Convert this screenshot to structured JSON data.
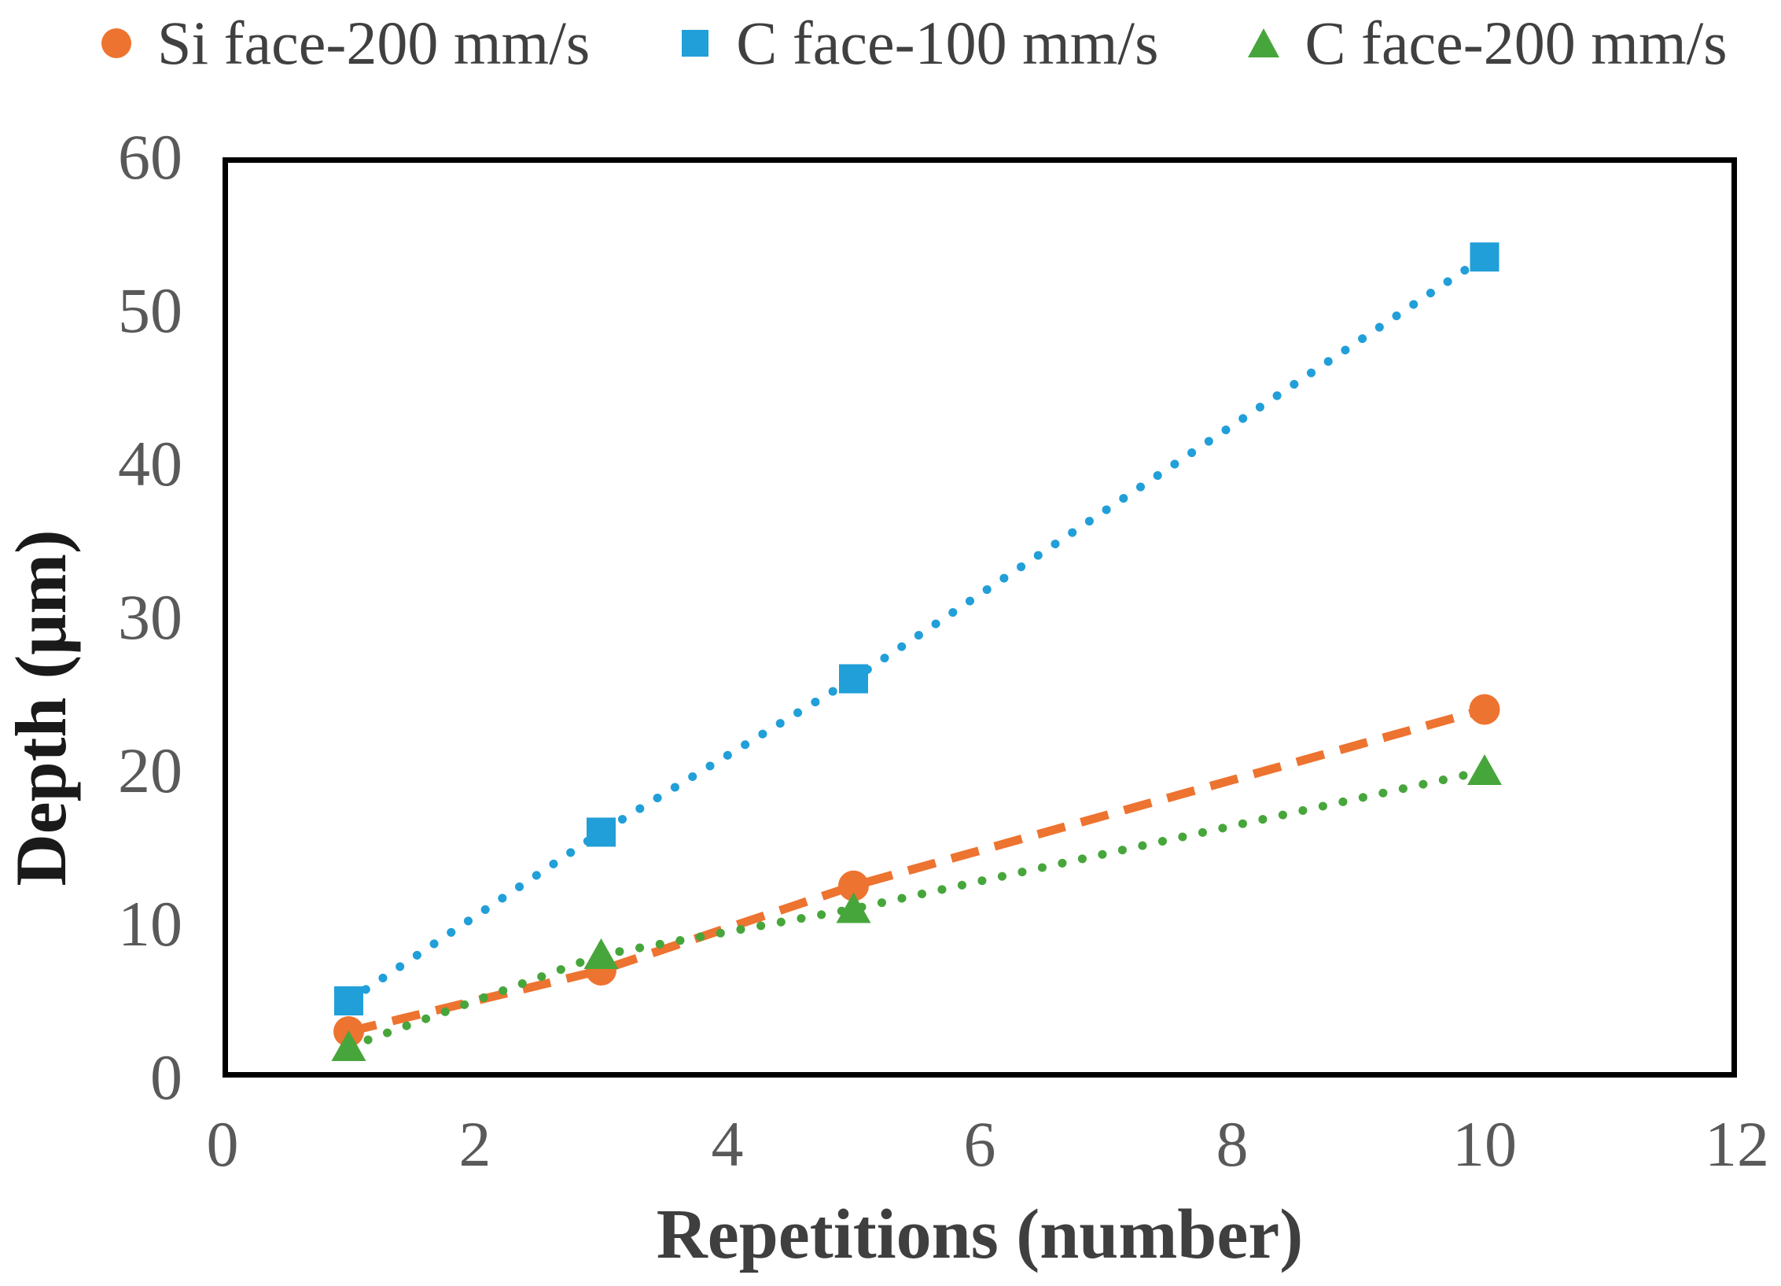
{
  "chart_data": {
    "type": "scatter",
    "title": "",
    "xlabel": "Repetitions (number)",
    "ylabel": "Depth (μm)",
    "xlim": [
      0,
      12
    ],
    "ylim": [
      0,
      60
    ],
    "x_ticks": [
      "0",
      "2",
      "4",
      "6",
      "8",
      "10",
      "12"
    ],
    "y_ticks": [
      "0",
      "10",
      "20",
      "30",
      "40",
      "50",
      "60"
    ],
    "x": [
      1,
      3,
      5,
      10
    ],
    "grid": false,
    "legend_position": "top",
    "series": [
      {
        "name": "Si face-200 mm/s",
        "marker": "circle",
        "line_style": "dashed",
        "color": "#ED7330",
        "values": [
          3,
          7,
          12.5,
          24
        ]
      },
      {
        "name": "C face-100 mm/s",
        "marker": "square",
        "line_style": "dotted",
        "color": "#219FD9",
        "values": [
          5,
          16,
          26,
          53.5
        ]
      },
      {
        "name": "C face-200 mm/s",
        "marker": "triangle",
        "line_style": "dotted",
        "color": "#47A63B",
        "values": [
          2,
          8,
          11,
          20
        ]
      }
    ],
    "styles": {
      "tick_label_color": "#595959",
      "axis_title_color": "#262626",
      "frame_color": "#000000",
      "background": "#FFFFFF"
    }
  }
}
